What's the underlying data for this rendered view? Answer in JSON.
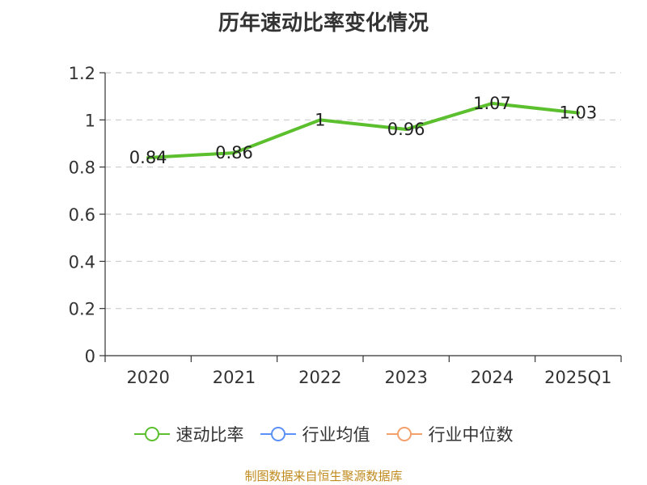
{
  "chart_data": {
    "type": "line",
    "title": "历年速动比率变化情况",
    "categories": [
      "2020",
      "2021",
      "2022",
      "2023",
      "2024",
      "2025Q1"
    ],
    "series": [
      {
        "name": "速动比率",
        "values": [
          0.84,
          0.86,
          1,
          0.96,
          1.07,
          1.03
        ],
        "color": "#5cc02e"
      }
    ],
    "data_labels": [
      "0.84",
      "0.86",
      "1",
      "0.96",
      "1.07",
      "1.03"
    ],
    "ylim": [
      0,
      1.2
    ],
    "yticks": [
      0,
      0.2,
      0.4,
      0.6,
      0.8,
      1,
      1.2
    ],
    "ytick_labels": [
      "0",
      "0.2",
      "0.4",
      "0.6",
      "0.8",
      "1",
      "1.2"
    ],
    "grid": true,
    "legend_position": "bottom",
    "legend": [
      {
        "label": "速动比率",
        "color": "#5cc02e"
      },
      {
        "label": "行业均值",
        "color": "#5b8ff9"
      },
      {
        "label": "行业中位数",
        "color": "#f4a06b"
      }
    ]
  },
  "footer": {
    "source": "制图数据来自恒生聚源数据库"
  }
}
